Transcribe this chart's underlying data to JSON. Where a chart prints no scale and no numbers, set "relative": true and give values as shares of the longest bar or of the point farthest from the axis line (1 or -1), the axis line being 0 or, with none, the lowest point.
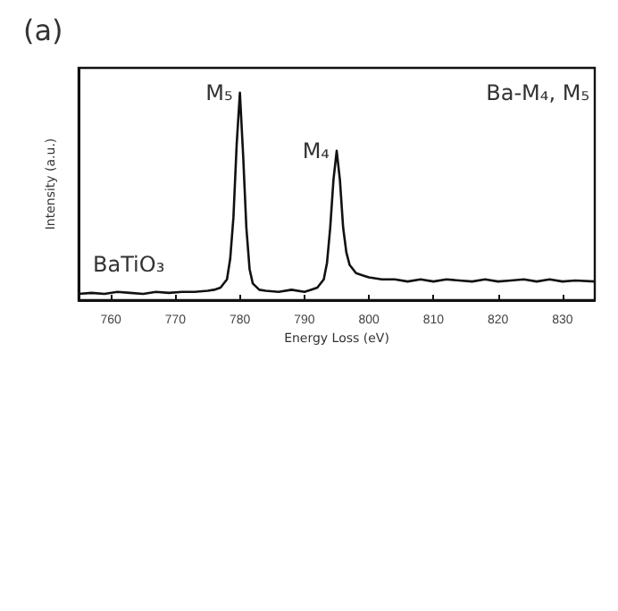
{
  "chart_data": {
    "type": "line",
    "title": "(a)",
    "xlabel": "Energy Loss (eV)",
    "ylabel": "Intensity (a.u.)",
    "relative": true,
    "marker": "none",
    "grid": false,
    "xlim": [
      755,
      835
    ],
    "xticks": [
      760,
      770,
      780,
      790,
      800,
      810,
      820,
      830
    ],
    "x": [
      755,
      757,
      759,
      761,
      763,
      765,
      767,
      769,
      771,
      773,
      775,
      776,
      777,
      778,
      778.5,
      779,
      779.5,
      780,
      780.5,
      781,
      781.5,
      782,
      783,
      784,
      786,
      788,
      790,
      791,
      792,
      793,
      793.5,
      794,
      794.5,
      795,
      795.5,
      796,
      796.5,
      797,
      798,
      799,
      800,
      802,
      804,
      806,
      808,
      810,
      812,
      814,
      816,
      818,
      820,
      822,
      824,
      826,
      828,
      830,
      832,
      835
    ],
    "series": [
      {
        "color": "#111111",
        "values": [
          0.03,
          0.035,
          0.03,
          0.04,
          0.035,
          0.03,
          0.04,
          0.035,
          0.04,
          0.04,
          0.045,
          0.05,
          0.06,
          0.1,
          0.2,
          0.4,
          0.75,
          1.0,
          0.7,
          0.35,
          0.15,
          0.08,
          0.05,
          0.045,
          0.04,
          0.05,
          0.04,
          0.05,
          0.06,
          0.1,
          0.18,
          0.35,
          0.58,
          0.72,
          0.58,
          0.35,
          0.23,
          0.17,
          0.13,
          0.12,
          0.11,
          0.1,
          0.1,
          0.09,
          0.1,
          0.09,
          0.1,
          0.095,
          0.09,
          0.1,
          0.09,
          0.095,
          0.1,
          0.09,
          0.1,
          0.09,
          0.095,
          0.09
        ]
      }
    ],
    "annotations": [
      {
        "text": "M₅",
        "x": 780,
        "y": 1.0
      },
      {
        "text": "M₄",
        "x": 795,
        "y": 0.72
      },
      "Ba-M₄, M₅",
      "BaTiO₃"
    ]
  }
}
